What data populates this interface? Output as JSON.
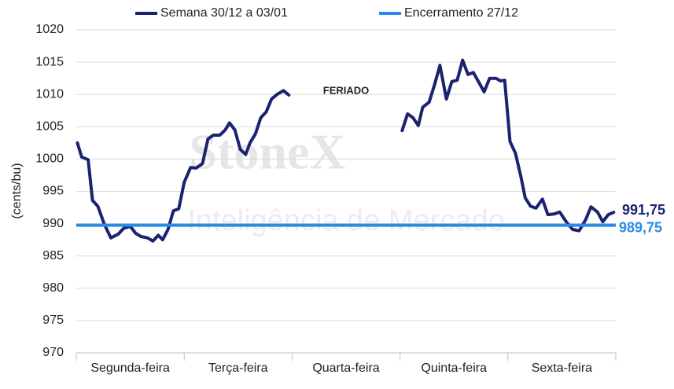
{
  "chart_data": {
    "type": "line",
    "y_label": "(cents/bu)",
    "annotation": "FERIADO",
    "watermark": [
      "StoneX",
      "Inteligência de Mercado"
    ],
    "categories": [
      "Segunda-feira",
      "Terça-feira",
      "Quarta-feira",
      "Quinta-feira",
      "Sexta-feira"
    ],
    "xlim": [
      0,
      5
    ],
    "ylim": [
      970,
      1020
    ],
    "yticks": [
      970,
      975,
      980,
      985,
      990,
      995,
      1000,
      1005,
      1010,
      1015,
      1020
    ],
    "grid": true,
    "legend": "top",
    "x": [
      0.01,
      0.05,
      0.11,
      0.15,
      0.2,
      0.26,
      0.32,
      0.39,
      0.44,
      0.5,
      0.55,
      0.6,
      0.66,
      0.71,
      0.76,
      0.8,
      0.85,
      0.9,
      0.95,
      1.0,
      1.06,
      1.11,
      1.17,
      1.22,
      1.27,
      1.33,
      1.38,
      1.42,
      1.47,
      1.52,
      1.57,
      1.61,
      1.66,
      1.71,
      1.76,
      1.81,
      1.86,
      1.92,
      1.97,
      2.5,
      3.02,
      3.07,
      3.12,
      3.17,
      3.21,
      3.27,
      3.32,
      3.37,
      3.43,
      3.48,
      3.53,
      3.58,
      3.63,
      3.68,
      3.72,
      3.78,
      3.83,
      3.89,
      3.93,
      3.97,
      4.02,
      4.07,
      4.12,
      4.16,
      4.21,
      4.26,
      4.32,
      4.37,
      4.43,
      4.48,
      4.54,
      4.6,
      4.66,
      4.72,
      4.77,
      4.83,
      4.88,
      4.93,
      4.98
    ],
    "series": [
      {
        "name": "Semana 30/12 a 03/01",
        "color": "#1b2371",
        "end_label": "991,75",
        "values": [
          1002.5,
          1000.3,
          999.9,
          993.6,
          992.7,
          989.9,
          987.8,
          988.4,
          989.3,
          989.6,
          988.5,
          988.0,
          987.8,
          987.3,
          988.2,
          987.5,
          989.1,
          992.0,
          992.3,
          996.4,
          998.7,
          998.6,
          999.3,
          1003.1,
          1003.7,
          1003.7,
          1004.5,
          1005.6,
          1004.5,
          1001.5,
          1000.7,
          1002.5,
          1003.9,
          1006.4,
          1007.3,
          1009.3,
          1010.0,
          1010.6,
          1009.9,
          null,
          1004.4,
          1007.0,
          1006.4,
          1005.2,
          1008.0,
          1008.8,
          1011.5,
          1014.5,
          1009.3,
          1012.0,
          1012.2,
          1015.3,
          1013.1,
          1013.4,
          1012.2,
          1010.4,
          1012.5,
          1012.5,
          1012.1,
          1012.2,
          1002.7,
          1000.9,
          997.3,
          994.0,
          992.7,
          992.4,
          993.8,
          991.4,
          991.5,
          991.8,
          990.3,
          989.1,
          988.9,
          990.6,
          992.6,
          991.8,
          990.3,
          991.4,
          991.75
        ]
      },
      {
        "name": "Encerramento 27/12",
        "color": "#2a8be6",
        "value": 989.75,
        "value_label": "989,75"
      }
    ]
  }
}
